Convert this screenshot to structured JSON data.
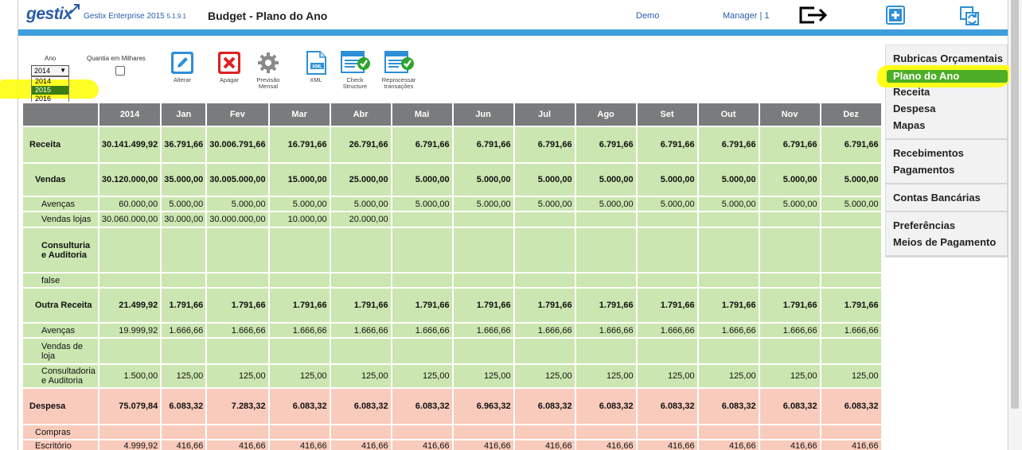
{
  "header": {
    "logo": "gestix",
    "app_name": "Gestix Enterprise 2015",
    "app_version": "5.1.9.1",
    "page_title": "Budget - Plano do Ano",
    "company": "Demo",
    "user": "Manager | 1"
  },
  "toolbar": {
    "year_label": "Ano",
    "year_selected": "2014",
    "year_options": [
      "2014",
      "2015",
      "2016"
    ],
    "year_highlighted": "2015",
    "thousands_label": "Quantia em Milhares",
    "thousands_checked": false,
    "actions": [
      {
        "label": "Alterar",
        "icon": "edit-icon"
      },
      {
        "label": "Apagar",
        "icon": "delete-icon"
      },
      {
        "label": "Previsão Mensal",
        "icon": "gear-icon"
      },
      {
        "label": "XML",
        "icon": "xml-file-icon"
      },
      {
        "label": "Check Structure",
        "icon": "check-structure-icon"
      },
      {
        "label": "Reprocessar transações",
        "icon": "reprocess-icon"
      }
    ]
  },
  "table": {
    "columns": [
      "",
      "2014",
      "Jan",
      "Fev",
      "Mar",
      "Abr",
      "Mai",
      "Jun",
      "Jul",
      "Ago",
      "Set",
      "Out",
      "Nov",
      "Dez"
    ],
    "rows": [
      {
        "label": "Receita",
        "type": "g",
        "level": "l0",
        "values": [
          "30.141.499,92",
          "36.791,66",
          "30.006.791,66",
          "16.791,66",
          "26.791,66",
          "6.791,66",
          "6.791,66",
          "6.791,66",
          "6.791,66",
          "6.791,66",
          "6.791,66",
          "6.791,66",
          "6.791,66"
        ]
      },
      {
        "label": "Vendas",
        "type": "g",
        "level": "l1",
        "values": [
          "30.120.000,00",
          "35.000,00",
          "30.005.000,00",
          "15.000,00",
          "25.000,00",
          "5.000,00",
          "5.000,00",
          "5.000,00",
          "5.000,00",
          "5.000,00",
          "5.000,00",
          "5.000,00",
          "5.000,00"
        ]
      },
      {
        "label": "Avenças",
        "type": "g",
        "level": "l2",
        "values": [
          "60.000,00",
          "5.000,00",
          "5.000,00",
          "5.000,00",
          "5.000,00",
          "5.000,00",
          "5.000,00",
          "5.000,00",
          "5.000,00",
          "5.000,00",
          "5.000,00",
          "5.000,00",
          "5.000,00"
        ]
      },
      {
        "label": "Vendas lojas",
        "type": "g",
        "level": "l2",
        "values": [
          "30.060.000,00",
          "30.000,00",
          "30.000.000,00",
          "10.000,00",
          "20.000,00",
          "",
          "",
          "",
          "",
          "",
          "",
          "",
          ""
        ]
      },
      {
        "label": "Consulturia e Auditoria",
        "type": "g",
        "level": "l2b",
        "values": [
          "",
          "",
          "",
          "",
          "",
          "",
          "",
          "",
          "",
          "",
          "",
          "",
          ""
        ]
      },
      {
        "label": "false",
        "type": "g",
        "level": "l2",
        "values": [
          "",
          "",
          "",
          "",
          "",
          "",
          "",
          "",
          "",
          "",
          "",
          "",
          ""
        ]
      },
      {
        "label": "Outra Receita",
        "type": "g",
        "level": "l1",
        "values": [
          "21.499,92",
          "1.791,66",
          "1.791,66",
          "1.791,66",
          "1.791,66",
          "1.791,66",
          "1.791,66",
          "1.791,66",
          "1.791,66",
          "1.791,66",
          "1.791,66",
          "1.791,66",
          "1.791,66"
        ]
      },
      {
        "label": "Avenças",
        "type": "g",
        "level": "l2",
        "values": [
          "19.999,92",
          "1.666,66",
          "1.666,66",
          "1.666,66",
          "1.666,66",
          "1.666,66",
          "1.666,66",
          "1.666,66",
          "1.666,66",
          "1.666,66",
          "1.666,66",
          "1.666,66",
          "1.666,66"
        ]
      },
      {
        "label": "Vendas de loja",
        "type": "g",
        "level": "l2",
        "values": [
          "",
          "",
          "",
          "",
          "",
          "",
          "",
          "",
          "",
          "",
          "",
          "",
          ""
        ]
      },
      {
        "label": "Consultadoria e Auditoria",
        "type": "g",
        "level": "l2",
        "values": [
          "1.500,00",
          "125,00",
          "125,00",
          "125,00",
          "125,00",
          "125,00",
          "125,00",
          "125,00",
          "125,00",
          "125,00",
          "125,00",
          "125,00",
          "125,00"
        ]
      },
      {
        "label": "Despesa",
        "type": "r",
        "level": "l0",
        "values": [
          "75.079,84",
          "6.083,32",
          "7.283,32",
          "6.083,32",
          "6.083,32",
          "6.083,32",
          "6.963,32",
          "6.083,32",
          "6.083,32",
          "6.083,32",
          "6.083,32",
          "6.083,32",
          "6.083,32"
        ]
      },
      {
        "label": "Compras",
        "type": "r",
        "level": "l1n",
        "values": [
          "",
          "",
          "",
          "",
          "",
          "",
          "",
          "",
          "",
          "",
          "",
          "",
          ""
        ]
      },
      {
        "label": "Escritório",
        "type": "r",
        "level": "l1n",
        "values": [
          "4.999,92",
          "416,66",
          "416,66",
          "416,66",
          "416,66",
          "416,66",
          "416,66",
          "416,66",
          "416,66",
          "416,66",
          "416,66",
          "416,66",
          "416,66"
        ]
      }
    ]
  },
  "menu": {
    "groups": [
      [
        "Rubricas Orçamentais",
        "Plano do Ano",
        "Receita",
        "Despesa",
        "Mapas"
      ],
      [
        "Recebimentos",
        "Pagamentos"
      ],
      [
        "Contas Bancárias"
      ],
      [
        "Preferências",
        "Meios de Pagamento"
      ]
    ],
    "active": "Plano do Ano"
  },
  "colors": {
    "brand": "#2a5ca8",
    "accent_bar": "#3e9fdc",
    "revenue_row": "#cbe6b0",
    "expense_row": "#f9cbbc",
    "header_row": "#7a7b7c",
    "highlight": "#ffff00"
  }
}
